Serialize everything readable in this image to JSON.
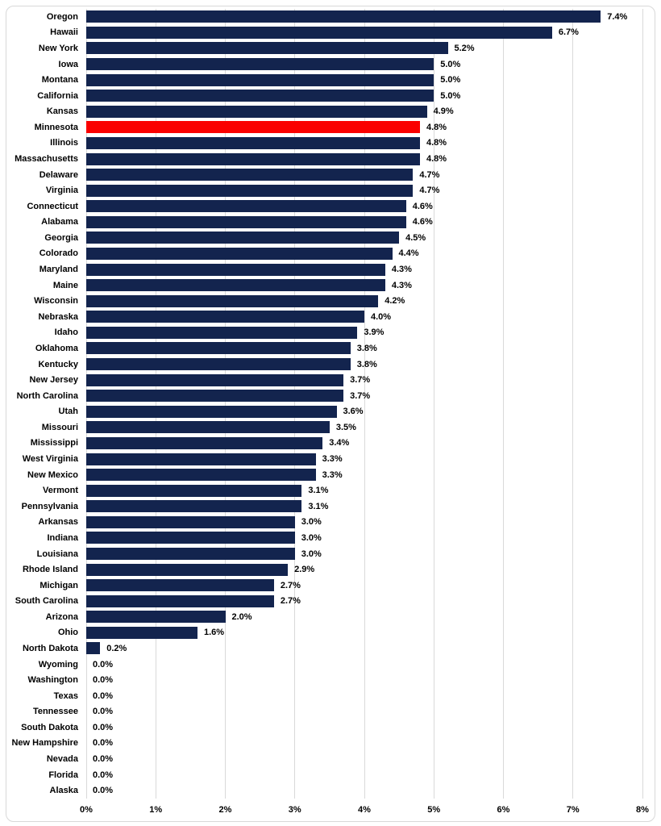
{
  "chart_data": {
    "type": "bar",
    "orientation": "horizontal",
    "title": "",
    "xlabel": "",
    "ylabel": "",
    "xlim": [
      0,
      8
    ],
    "grid": true,
    "gridline_color": "#d9d9d9",
    "bar_color": "#13244e",
    "highlight_color": "#fa0000",
    "highlight_category": "Minnesota",
    "x_ticks": [
      "0%",
      "1%",
      "2%",
      "3%",
      "4%",
      "5%",
      "6%",
      "7%",
      "8%"
    ],
    "x_tick_values": [
      0,
      1,
      2,
      3,
      4,
      5,
      6,
      7,
      8
    ],
    "categories": [
      "Oregon",
      "Hawaii",
      "New York",
      "Iowa",
      "Montana",
      "California",
      "Kansas",
      "Minnesota",
      "Illinois",
      "Massachusetts",
      "Delaware",
      "Virginia",
      "Connecticut",
      "Alabama",
      "Georgia",
      "Colorado",
      "Maryland",
      "Maine",
      "Wisconsin",
      "Nebraska",
      "Idaho",
      "Oklahoma",
      "Kentucky",
      "New Jersey",
      "North Carolina",
      "Utah",
      "Missouri",
      "Mississippi",
      "West Virginia",
      "New Mexico",
      "Vermont",
      "Pennsylvania",
      "Arkansas",
      "Indiana",
      "Louisiana",
      "Rhode Island",
      "Michigan",
      "South Carolina",
      "Arizona",
      "Ohio",
      "North Dakota",
      "Wyoming",
      "Washington",
      "Texas",
      "Tennessee",
      "South Dakota",
      "New Hampshire",
      "Nevada",
      "Florida",
      "Alaska"
    ],
    "values": [
      7.4,
      6.7,
      5.2,
      5.0,
      5.0,
      5.0,
      4.9,
      4.8,
      4.8,
      4.8,
      4.7,
      4.7,
      4.6,
      4.6,
      4.5,
      4.4,
      4.3,
      4.3,
      4.2,
      4.0,
      3.9,
      3.8,
      3.8,
      3.7,
      3.7,
      3.6,
      3.5,
      3.4,
      3.3,
      3.3,
      3.1,
      3.1,
      3.0,
      3.0,
      3.0,
      2.9,
      2.7,
      2.7,
      2.0,
      1.6,
      0.2,
      0.0,
      0.0,
      0.0,
      0.0,
      0.0,
      0.0,
      0.0,
      0.0,
      0.0
    ],
    "value_labels": [
      "7.4%",
      "6.7%",
      "5.2%",
      "5.0%",
      "5.0%",
      "5.0%",
      "4.9%",
      "4.8%",
      "4.8%",
      "4.8%",
      "4.7%",
      "4.7%",
      "4.6%",
      "4.6%",
      "4.5%",
      "4.4%",
      "4.3%",
      "4.3%",
      "4.2%",
      "4.0%",
      "3.9%",
      "3.8%",
      "3.8%",
      "3.7%",
      "3.7%",
      "3.6%",
      "3.5%",
      "3.4%",
      "3.3%",
      "3.3%",
      "3.1%",
      "3.1%",
      "3.0%",
      "3.0%",
      "3.0%",
      "2.9%",
      "2.7%",
      "2.7%",
      "2.0%",
      "1.6%",
      "0.2%",
      "0.0%",
      "0.0%",
      "0.0%",
      "0.0%",
      "0.0%",
      "0.0%",
      "0.0%",
      "0.0%",
      "0.0%"
    ]
  }
}
